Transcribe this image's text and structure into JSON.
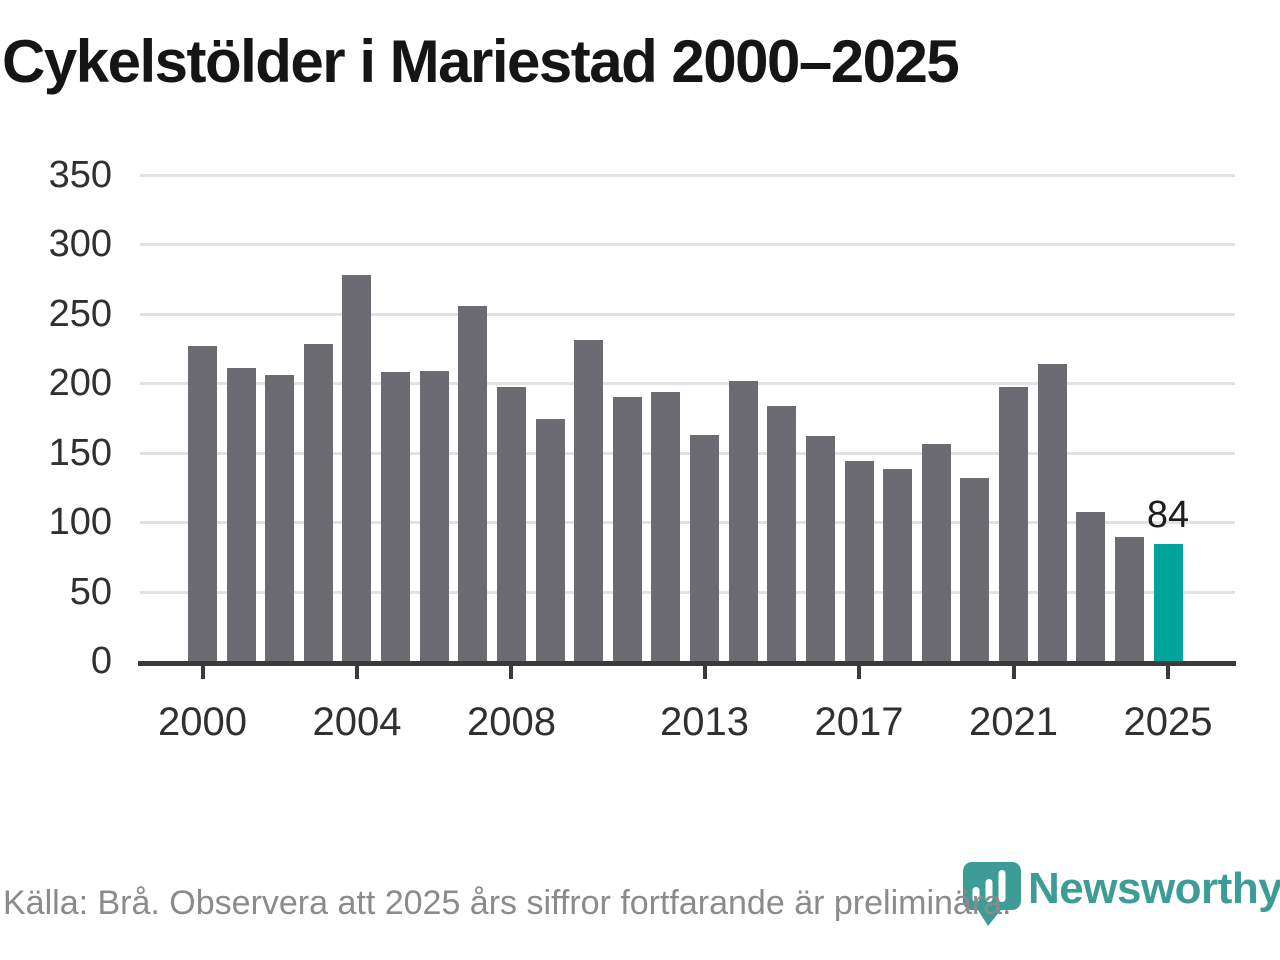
{
  "title": "Cykelstölder i Mariestad 2000–2025",
  "chart_data": {
    "type": "bar",
    "categories": [
      "2000",
      "2001",
      "2002",
      "2003",
      "2004",
      "2005",
      "2006",
      "2007",
      "2008",
      "2009",
      "2010",
      "2011",
      "2012",
      "2013",
      "2014",
      "2015",
      "2016",
      "2017",
      "2018",
      "2019",
      "2020",
      "2021",
      "2022",
      "2023",
      "2024",
      "2025"
    ],
    "values": [
      227,
      211,
      206,
      228,
      278,
      208,
      209,
      256,
      197,
      174,
      231,
      190,
      194,
      163,
      202,
      184,
      162,
      144,
      138,
      156,
      132,
      197,
      214,
      107,
      89,
      84
    ],
    "title": "Cykelstölder i Mariestad 2000–2025",
    "xlabel": "",
    "ylabel": "",
    "ylim": [
      0,
      350
    ],
    "yticks": [
      0,
      50,
      100,
      150,
      200,
      250,
      300,
      350
    ],
    "x_tick_labels": [
      "2000",
      "2004",
      "2008",
      "2013",
      "2017",
      "2021",
      "2025"
    ],
    "grid": true,
    "legend": "none",
    "bar_color": "#6b6b71",
    "highlight_color": "#00a49b",
    "highlight_category": "2025",
    "annotation": {
      "text": "84",
      "category": "2025"
    }
  },
  "footer": {
    "source": "Källa: Brå. Observera att 2025 års siffror fortfarande är preliminära."
  },
  "logo": {
    "text": "Newsworthy",
    "color": "#3e9c96"
  }
}
